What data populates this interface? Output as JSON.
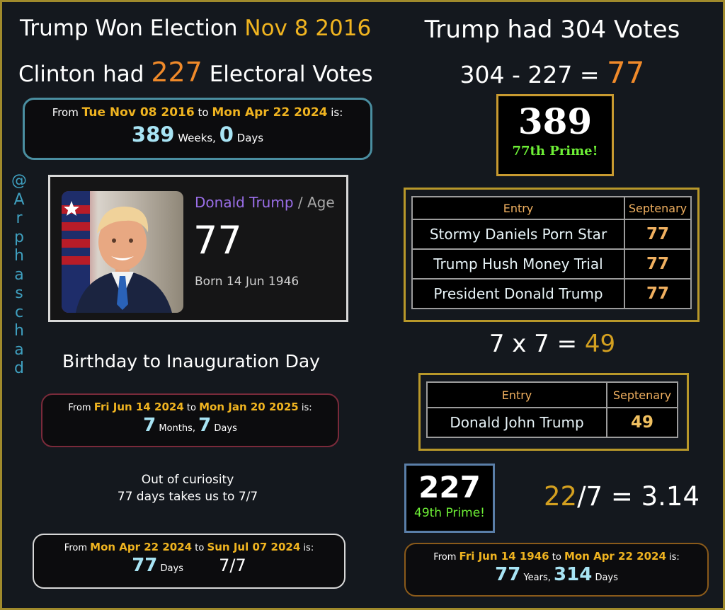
{
  "colors": {
    "orange": "#f08a2a",
    "gold": "#f0b420",
    "lightblue": "#a8e4f4",
    "green": "#6ef036",
    "border_gold": "#a08a2c"
  },
  "left": {
    "headline1_prefix": "Trump Won Election",
    "headline1_date": "Nov 8 2016",
    "headline2_prefix": "Clinton had",
    "headline2_num": "227",
    "headline2_suffix": "Electoral Votes",
    "box1": {
      "from": "From",
      "d1": "Tue Nov 08 2016",
      "to": "to",
      "d2": "Mon Apr 22 2024",
      "is": "is:",
      "n1": "389",
      "u1": "Weeks,",
      "n2": "0",
      "u2": "Days"
    },
    "card": {
      "name": "Donald Trump",
      "sep": " / Age",
      "age": "77",
      "born": "Born 14 Jun 1946",
      "photo_icon": "portrait-photo"
    },
    "handle": [
      "@",
      "A",
      "r",
      "p",
      "h",
      "a",
      "s",
      "c",
      "h",
      "a",
      "d"
    ],
    "subtitle": "Birthday to Inauguration Day",
    "box2": {
      "from": "From",
      "d1": "Fri Jun 14 2024",
      "to": "to",
      "d2": "Mon Jan 20 2025",
      "is": "is:",
      "n1": "7",
      "u1": "Months,",
      "n2": "7",
      "u2": "Days"
    },
    "curiosity1": "Out of curiosity",
    "curiosity2": "77 days takes us to 7/7",
    "box3": {
      "from": "From",
      "d1": "Mon Apr 22 2024",
      "to": "to",
      "d2": "Sun Jul 07 2024",
      "is": "is:",
      "n1": "77",
      "u1": "Days",
      "extra": "7/7"
    }
  },
  "right": {
    "headline1": "Trump had 304 Votes",
    "eq1_prefix": "304 - 227 =",
    "eq1_result": "77",
    "prime1": {
      "num": "389",
      "label": "77th Prime!"
    },
    "table1": {
      "headers": [
        "Entry",
        "Septenary"
      ],
      "rows": [
        [
          "Stormy Daniels Porn Star",
          "77"
        ],
        [
          "Trump Hush Money Trial",
          "77"
        ],
        [
          "President Donald Trump",
          "77"
        ]
      ]
    },
    "eq2_prefix": "7 x 7 =",
    "eq2_result": "49",
    "table2": {
      "headers": [
        "Entry",
        "Septenary"
      ],
      "rows": [
        [
          "Donald John Trump",
          "49"
        ]
      ]
    },
    "prime2": {
      "num": "227",
      "label": "49th Prime!"
    },
    "eq3_num": "22",
    "eq3_rest": "/7 = 3.14",
    "box4": {
      "from": "From",
      "d1": "Fri Jun 14 1946",
      "to": "to",
      "d2": "Mon Apr 22 2024",
      "is": "is:",
      "n1": "77",
      "u1": "Years,",
      "n2": "314",
      "u2": "Days"
    }
  }
}
